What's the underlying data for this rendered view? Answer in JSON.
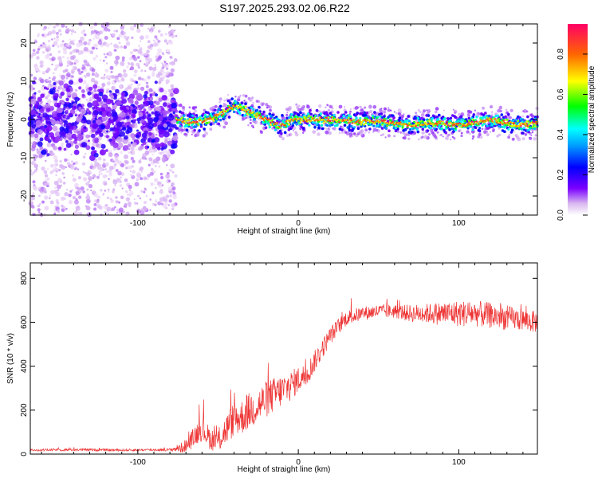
{
  "title": "S197.2025.293.02.06.R22",
  "chart_data": [
    {
      "type": "heatmap",
      "title": "S197.2025.293.02.06.R22",
      "xlabel": "Height of straight line (km)",
      "ylabel": "Frequency (Hz)",
      "xlim": [
        -167,
        149
      ],
      "ylim": [
        -25,
        25
      ],
      "x_ticks": [
        -100,
        0,
        100
      ],
      "y_ticks": [
        -20,
        -10,
        0,
        10,
        20
      ],
      "x_tick_labels": [
        "-100",
        "0",
        "100"
      ],
      "y_tick_labels": [
        "-20",
        "-10",
        "0",
        "10",
        "20"
      ],
      "colorbar": {
        "label": "Normalized spectral amplitude",
        "range": [
          0.0,
          0.95
        ],
        "ticks": [
          0.0,
          0.2,
          0.4,
          0.6,
          0.8
        ],
        "tick_labels": [
          "0.0",
          "0.2",
          "0.4",
          "0.6",
          "0.8"
        ]
      },
      "ridge": {
        "x": [
          -167,
          -150,
          -130,
          -110,
          -90,
          -76,
          -70,
          -60,
          -50,
          -44,
          -40,
          -36,
          -30,
          -25,
          -20,
          -15,
          -12,
          -8,
          -4,
          0,
          10,
          20,
          30,
          40,
          50,
          60,
          70,
          80,
          90,
          100,
          110,
          120,
          130,
          140,
          149
        ],
        "y": [
          0,
          0.5,
          -0.5,
          0.5,
          0,
          0,
          -0.5,
          -0.5,
          1,
          2.5,
          3.5,
          3,
          2,
          1,
          0,
          -1,
          -1.5,
          -1,
          0,
          0,
          0,
          0,
          -0.5,
          -0.5,
          -0.5,
          -1,
          -1.5,
          -1,
          -1,
          -1.5,
          -1,
          0,
          -1,
          -1.5,
          -1
        ]
      },
      "noisy_region_end_km": -76
    },
    {
      "type": "line",
      "xlabel": "Height of straight line (km)",
      "ylabel": "SNR (10 * v/v)",
      "xlim": [
        -167,
        149
      ],
      "ylim": [
        0,
        870
      ],
      "x_ticks": [
        -100,
        0,
        100
      ],
      "y_ticks": [
        0,
        200,
        400,
        600,
        800
      ],
      "x_tick_labels": [
        "-100",
        "0",
        "100"
      ],
      "y_tick_labels": [
        "0",
        "200",
        "400",
        "600",
        "800"
      ],
      "color": "#ee3333",
      "series": [
        {
          "name": "SNR",
          "x": [
            -167,
            -140,
            -110,
            -80,
            -72,
            -68,
            -64,
            -60,
            -55,
            -50,
            -45,
            -40,
            -35,
            -30,
            -25,
            -20,
            -15,
            -10,
            -5,
            0,
            5,
            10,
            15,
            20,
            25,
            30,
            40,
            50,
            60,
            70,
            80,
            90,
            100,
            110,
            120,
            130,
            140,
            149
          ],
          "y": [
            18,
            20,
            18,
            20,
            30,
            50,
            90,
            120,
            70,
            60,
            110,
            160,
            170,
            200,
            220,
            250,
            270,
            290,
            310,
            340,
            360,
            420,
            480,
            540,
            580,
            620,
            640,
            650,
            650,
            640,
            640,
            640,
            640,
            640,
            630,
            620,
            610,
            600
          ],
          "noise": [
            5,
            6,
            5,
            6,
            25,
            35,
            50,
            60,
            50,
            55,
            70,
            80,
            80,
            85,
            85,
            85,
            80,
            75,
            70,
            60,
            55,
            50,
            45,
            40,
            38,
            35,
            32,
            32,
            32,
            40,
            45,
            55,
            60,
            60,
            60,
            55,
            50,
            50
          ]
        }
      ]
    }
  ]
}
